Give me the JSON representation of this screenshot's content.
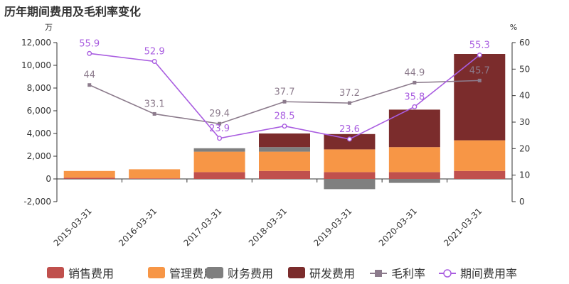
{
  "chart_data": {
    "type": "bar",
    "title": "历年期间费用及毛利率变化",
    "categories": [
      "2015-03-31",
      "2016-03-31",
      "2017-03-31",
      "2018-03-31",
      "2019-03-31",
      "2020-03-31",
      "2021-03-31"
    ],
    "y_left": {
      "unit": "万",
      "lim": [
        -2000,
        12000
      ],
      "ticks": [
        "-2,000",
        "0",
        "2,000",
        "4,000",
        "6,000",
        "8,000",
        "10,000",
        "12,000"
      ],
      "tick_values": [
        -2000,
        0,
        2000,
        4000,
        6000,
        8000,
        10000,
        12000
      ]
    },
    "y_right": {
      "unit": "%",
      "lim": [
        0,
        60
      ],
      "ticks": [
        "0",
        "10",
        "20",
        "30",
        "40",
        "50",
        "60"
      ],
      "tick_values": [
        0,
        10,
        20,
        30,
        40,
        50,
        60
      ]
    },
    "stacked": true,
    "series": [
      {
        "name": "销售费用",
        "type": "bar",
        "color": "#c0504d",
        "values": [
          100,
          50,
          600,
          700,
          600,
          600,
          700
        ]
      },
      {
        "name": "管理费用",
        "type": "bar",
        "color": "#f79646",
        "values": [
          600,
          800,
          1800,
          1700,
          2000,
          2200,
          2700
        ]
      },
      {
        "name": "财务费用",
        "type": "bar",
        "color": "#7f7f7f",
        "values": [
          0,
          0,
          300,
          400,
          -900,
          -350,
          0
        ]
      },
      {
        "name": "研发费用",
        "type": "bar",
        "color": "#7b2c2c",
        "values": [
          0,
          0,
          0,
          1200,
          1350,
          3300,
          7600
        ]
      },
      {
        "name": "毛利率",
        "type": "line",
        "axis": "right",
        "color": "#8c7b8c",
        "marker": "square",
        "values": [
          44,
          33.1,
          29.4,
          37.7,
          37.2,
          44.9,
          45.7
        ],
        "labels": [
          "44",
          "33.1",
          "29.4",
          "37.7",
          "37.2",
          "44.9",
          "45.7"
        ]
      },
      {
        "name": "期间费用率",
        "type": "line",
        "axis": "right",
        "color": "#a95de0",
        "marker": "circle",
        "values": [
          55.9,
          52.9,
          23.9,
          28.5,
          23.6,
          35.8,
          55.3
        ],
        "labels": [
          "55.9",
          "52.9",
          "23.9",
          "28.5",
          "23.6",
          "35.8",
          "55.3"
        ]
      }
    ],
    "legend_position": "bottom",
    "grid": false
  }
}
